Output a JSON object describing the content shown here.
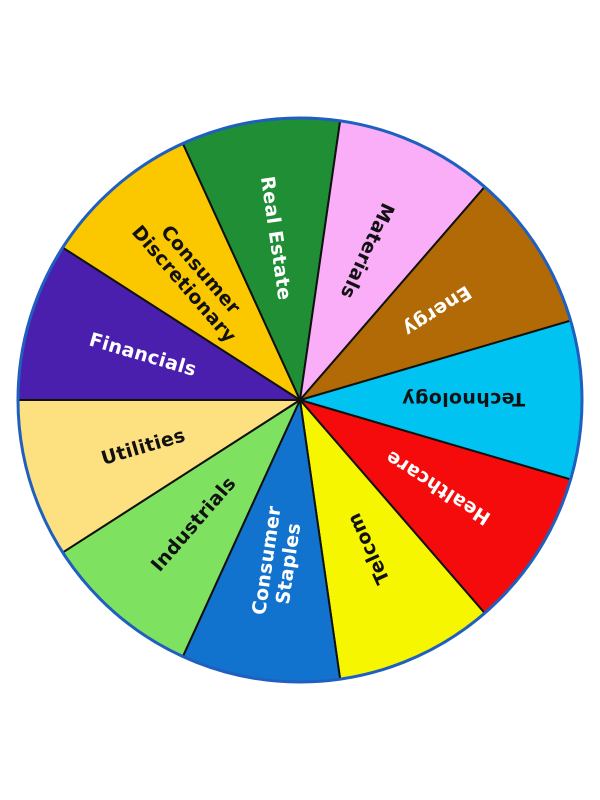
{
  "wheel": {
    "rim_color": "#1f5fbf",
    "divider_color": "#111111",
    "segments": [
      {
        "lines": [
          "Technology"
        ],
        "fill": "#00c3f2",
        "text_color": "#111111"
      },
      {
        "lines": [
          "Healthcare"
        ],
        "fill": "#f50b0b",
        "text_color": "#ffffff"
      },
      {
        "lines": [
          "Telcom"
        ],
        "fill": "#f6f600",
        "text_color": "#111111"
      },
      {
        "lines": [
          "Consumer",
          "Staples"
        ],
        "fill": "#1273cf",
        "text_color": "#ffffff"
      },
      {
        "lines": [
          "Industrials"
        ],
        "fill": "#7ee160",
        "text_color": "#111111"
      },
      {
        "lines": [
          "Utilities"
        ],
        "fill": "#fde07f",
        "text_color": "#111111"
      },
      {
        "lines": [
          "Financials"
        ],
        "fill": "#4a1fae",
        "text_color": "#ffffff"
      },
      {
        "lines": [
          "Consumer",
          "Discretionary"
        ],
        "fill": "#fbc800",
        "text_color": "#111111"
      },
      {
        "lines": [
          "Real Estate"
        ],
        "fill": "#1f8e35",
        "text_color": "#ffffff"
      },
      {
        "lines": [
          "Materials"
        ],
        "fill": "#f9aef7",
        "text_color": "#111111"
      },
      {
        "lines": [
          "Energy"
        ],
        "fill": "#b26a06",
        "text_color": "#ffffff"
      }
    ]
  }
}
